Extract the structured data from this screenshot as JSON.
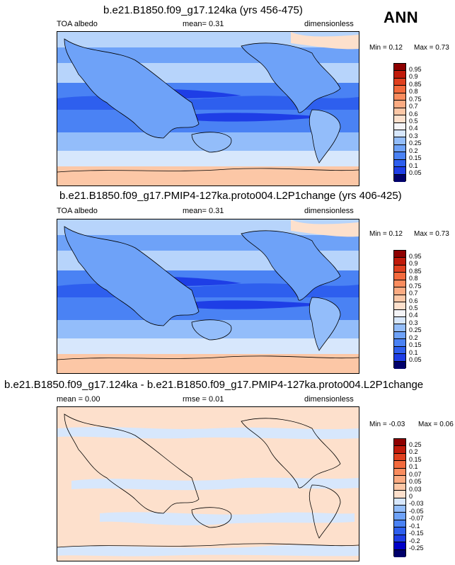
{
  "season": "ANN",
  "colors": {
    "full": [
      "#00006b",
      "#0000c8",
      "#1e3ee6",
      "#2e5fee",
      "#4a82f4",
      "#6ea2f8",
      "#93bdfa",
      "#b7d4fb",
      "#d7e7fc",
      "#f4f4f7",
      "#fde0cc",
      "#fcc7a6",
      "#fbab82",
      "#f98c5e",
      "#f36a3d",
      "#e0401f",
      "#c01a0a",
      "#8e0000"
    ],
    "diff": [
      "#00006b",
      "#0000c8",
      "#1e3ee6",
      "#2e5fee",
      "#4a82f4",
      "#6ea2f8",
      "#93bdfa",
      "#d7e7fc",
      "#fde0cc",
      "#fcc7a6",
      "#fbab82",
      "#f98c5e",
      "#f36a3d",
      "#e0401f",
      "#c01a0a",
      "#8e0000"
    ]
  },
  "panels": [
    {
      "title": "b.e21.B1850.f09_g17.124ka (yrs 456-475)",
      "left": "TOA albedo",
      "center": "mean=  0.31",
      "right": "dimensionless",
      "min_text": "Min =  0.12",
      "max_text": "Max =  0.73",
      "ticks": [
        "0.95",
        "0.9",
        "0.85",
        "0.8",
        "0.75",
        "0.7",
        "0.6",
        "0.5",
        "0.4",
        "0.3",
        "0.25",
        "0.2",
        "0.15",
        "0.1",
        "0.05"
      ],
      "palette": "full"
    },
    {
      "title": "b.e21.B1850.f09_g17.PMIP4-127ka.proto004.L2P1change (yrs 406-425)",
      "left": "TOA albedo",
      "center": "mean=  0.31",
      "right": "dimensionless",
      "min_text": "Min =  0.12",
      "max_text": "Max =  0.73",
      "ticks": [
        "0.95",
        "0.9",
        "0.85",
        "0.8",
        "0.75",
        "0.7",
        "0.6",
        "0.5",
        "0.4",
        "0.3",
        "0.25",
        "0.2",
        "0.15",
        "0.1",
        "0.05"
      ],
      "palette": "full"
    },
    {
      "title": "b.e21.B1850.f09_g17.124ka - b.e21.B1850.f09_g17.PMIP4-127ka.proto004.L2P1change",
      "left": "mean =  0.00",
      "center": "rmse =  0.01",
      "right": "dimensionless",
      "min_text": "Min =  -0.03",
      "max_text": "Max =  0.06",
      "ticks": [
        "0.25",
        "0.2",
        "0.15",
        "0.1",
        "0.07",
        "0.05",
        "0.03",
        "0",
        "-0.03",
        "-0.05",
        "-0.07",
        "-0.1",
        "-0.15",
        "-0.2",
        "-0.25"
      ],
      "palette": "diff"
    }
  ],
  "chart_data": [
    {
      "type": "heatmap",
      "title": "b.e21.B1850.f09_g17.124ka (yrs 456-475)",
      "variable": "TOA albedo",
      "units": "dimensionless",
      "season": "ANN",
      "mean": 0.31,
      "min": 0.12,
      "max": 0.73,
      "contour_levels": [
        0.05,
        0.1,
        0.15,
        0.2,
        0.25,
        0.3,
        0.4,
        0.5,
        0.6,
        0.7,
        0.75,
        0.8,
        0.85,
        0.9,
        0.95
      ],
      "projection": "global cylindrical, Pacific-centered (0 to 360 E)"
    },
    {
      "type": "heatmap",
      "title": "b.e21.B1850.f09_g17.PMIP4-127ka.proto004.L2P1change (yrs 406-425)",
      "variable": "TOA albedo",
      "units": "dimensionless",
      "season": "ANN",
      "mean": 0.31,
      "min": 0.12,
      "max": 0.73,
      "contour_levels": [
        0.05,
        0.1,
        0.15,
        0.2,
        0.25,
        0.3,
        0.4,
        0.5,
        0.6,
        0.7,
        0.75,
        0.8,
        0.85,
        0.9,
        0.95
      ],
      "projection": "global cylindrical, Pacific-centered (0 to 360 E)"
    },
    {
      "type": "heatmap",
      "title": "b.e21.B1850.f09_g17.124ka - b.e21.B1850.f09_g17.PMIP4-127ka.proto004.L2P1change",
      "units": "dimensionless",
      "mean": 0.0,
      "rmse": 0.01,
      "min": -0.03,
      "max": 0.06,
      "contour_levels": [
        -0.25,
        -0.2,
        -0.15,
        -0.1,
        -0.07,
        -0.05,
        -0.03,
        0,
        0.03,
        0.05,
        0.07,
        0.1,
        0.15,
        0.2,
        0.25
      ],
      "projection": "global cylindrical, Pacific-centered (0 to 360 E)"
    }
  ]
}
